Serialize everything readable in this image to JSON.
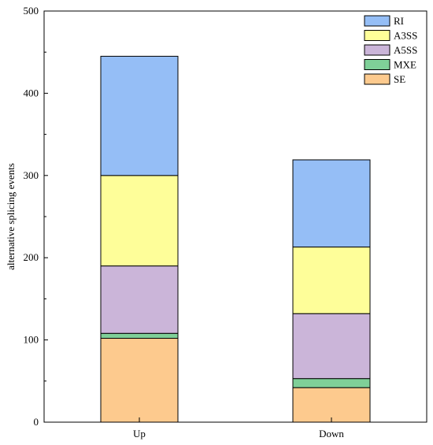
{
  "chart_data": {
    "type": "bar",
    "stacked": true,
    "categories": [
      "Up",
      "Down"
    ],
    "series": [
      {
        "name": "SE",
        "color": "#FDCA8E",
        "values": [
          102,
          42
        ]
      },
      {
        "name": "MXE",
        "color": "#7FD098",
        "values": [
          6,
          11
        ]
      },
      {
        "name": "A5SS",
        "color": "#CBB5D9",
        "values": [
          82,
          79
        ]
      },
      {
        "name": "A3SS",
        "color": "#FEFE99",
        "values": [
          110,
          81
        ]
      },
      {
        "name": "RI",
        "color": "#95BEF6",
        "values": [
          145,
          106
        ]
      }
    ],
    "title": "",
    "xlabel": "",
    "ylabel": "alternative splicing events",
    "ylim": [
      0,
      500
    ],
    "yticks": [
      0,
      100,
      200,
      300,
      400,
      500
    ],
    "grid": false,
    "legend_position": "top-right"
  }
}
